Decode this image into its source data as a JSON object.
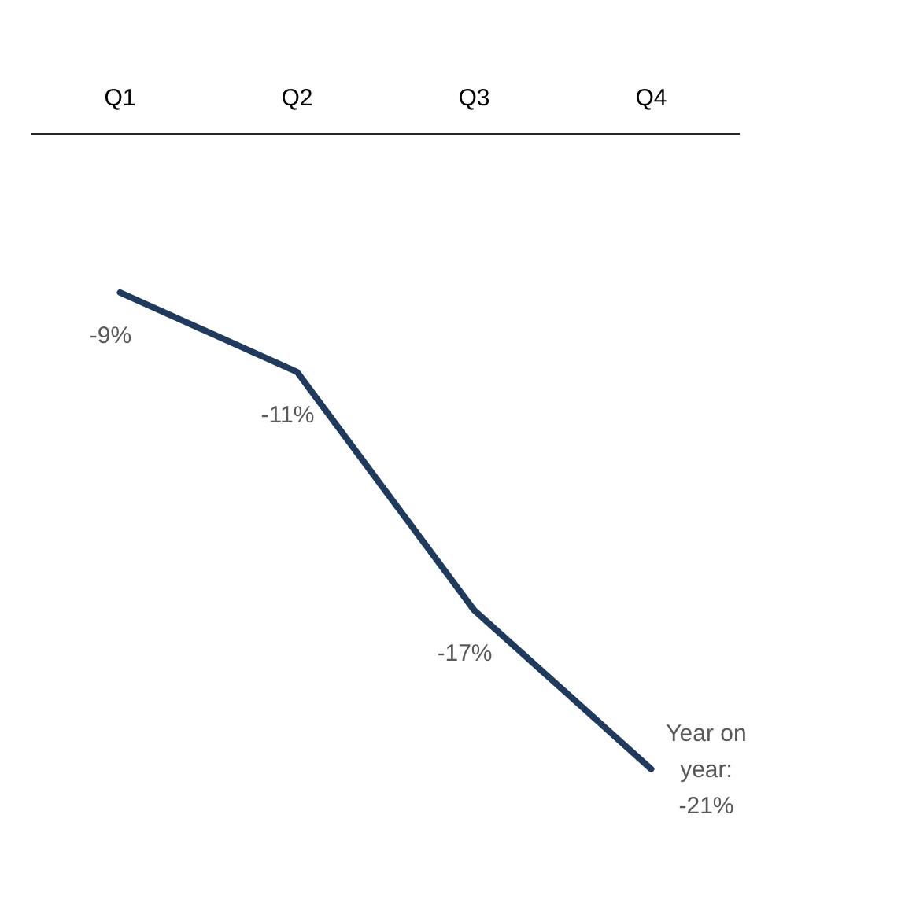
{
  "chart_data": {
    "type": "line",
    "categories": [
      "Q1",
      "Q2",
      "Q3",
      "Q4"
    ],
    "series": [
      {
        "color": "#1f3a5c",
        "values": [
          -9,
          -11,
          -17,
          -21
        ],
        "value_labels": [
          "-9%",
          "-11%",
          "-17%",
          "Year on year: -21%"
        ]
      }
    ],
    "marker": "none",
    "tick_labels": "x"
  }
}
